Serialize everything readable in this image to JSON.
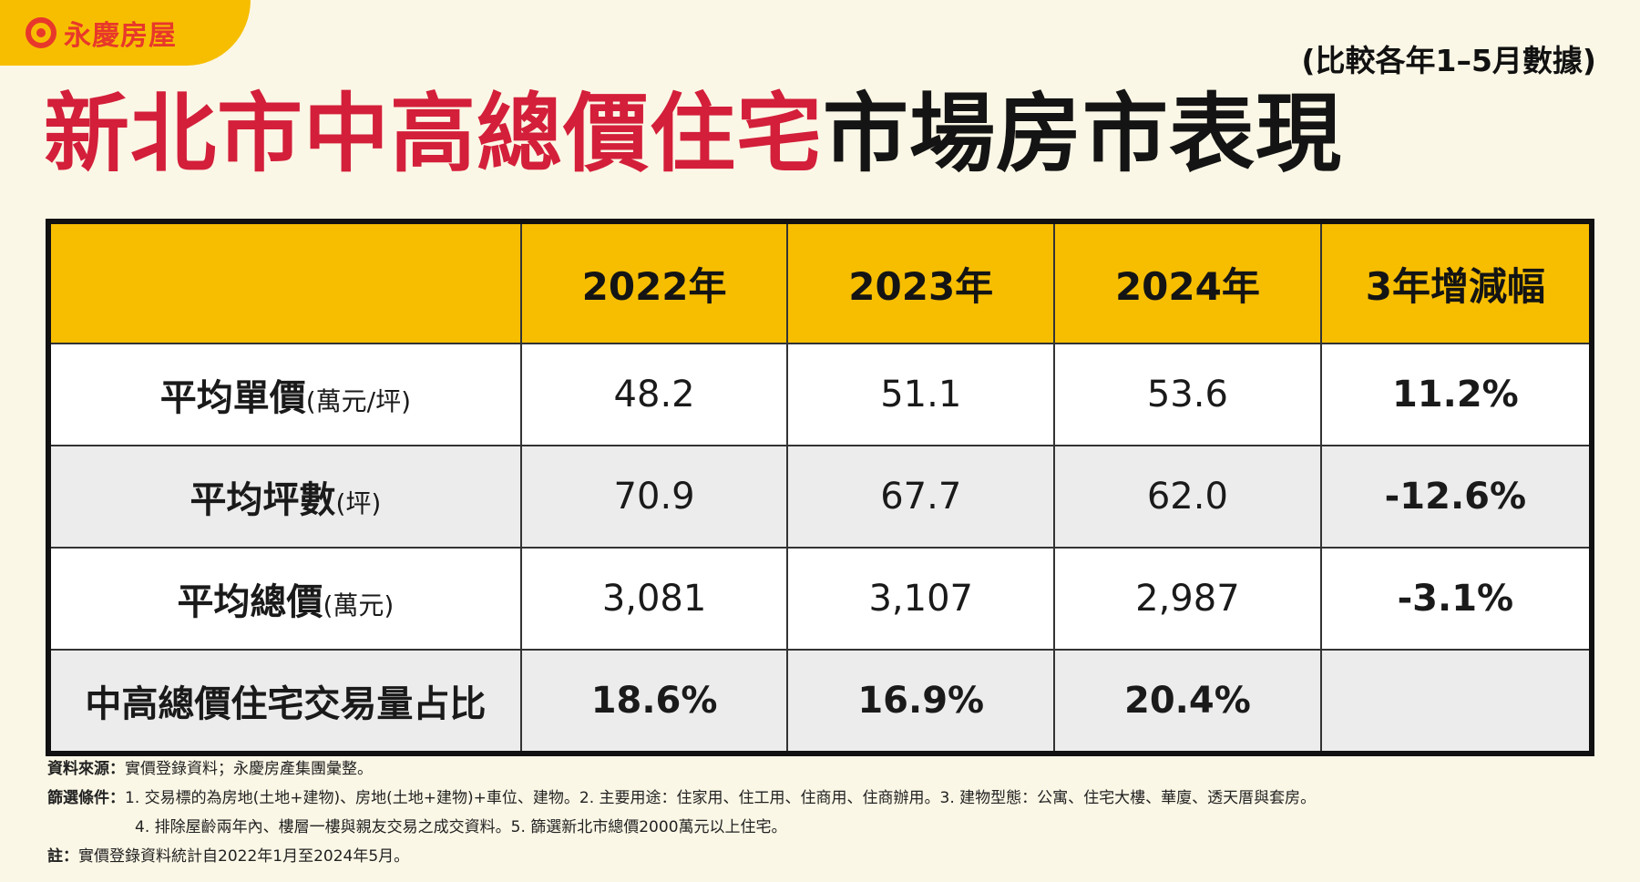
{
  "brand": {
    "logo_text": "永慶房屋",
    "accent_color": "#e8382b",
    "tab_color": "#f7be00"
  },
  "subtitle": "(比較各年1–5月數據)",
  "title": {
    "red_part": "新北市中高總價住宅",
    "black_part": "市場房市表現"
  },
  "table": {
    "headers": [
      "",
      "2022年",
      "2023年",
      "2024年",
      "3年增減幅"
    ],
    "rows": [
      {
        "label": "平均單價",
        "unit": "(萬元/坪)",
        "values": [
          "48.2",
          "51.1",
          "53.6",
          "11.2%"
        ]
      },
      {
        "label": "平均坪數",
        "unit": "(坪)",
        "values": [
          "70.9",
          "67.7",
          "62.0",
          "-12.6%"
        ]
      },
      {
        "label": "平均總價",
        "unit": "(萬元)",
        "values": [
          "3,081",
          "3,107",
          "2,987",
          "-3.1%"
        ]
      },
      {
        "label": "中高總價住宅交易量占比",
        "unit": "",
        "values": [
          "18.6%",
          "16.9%",
          "20.4%",
          ""
        ]
      }
    ]
  },
  "footer": {
    "source_key": "資料來源：",
    "source_text": "實價登錄資料；永慶房產集團彙整。",
    "filter_key": "篩選條件：",
    "filter_line1": "1. 交易標的為房地(土地+建物)、房地(土地+建物)+車位、建物。2. 主要用途：住家用、住工用、住商用、住商辦用。3. 建物型態：公寓、住宅大樓、華廈、透天厝與套房。",
    "filter_line2": "4. 排除屋齡兩年內、樓層一樓與親友交易之成交資料。5. 篩選新北市總價2000萬元以上住宅。",
    "note_key": "註：",
    "note_text": "實價登錄資料統計自2022年1月至2024年5月。"
  }
}
